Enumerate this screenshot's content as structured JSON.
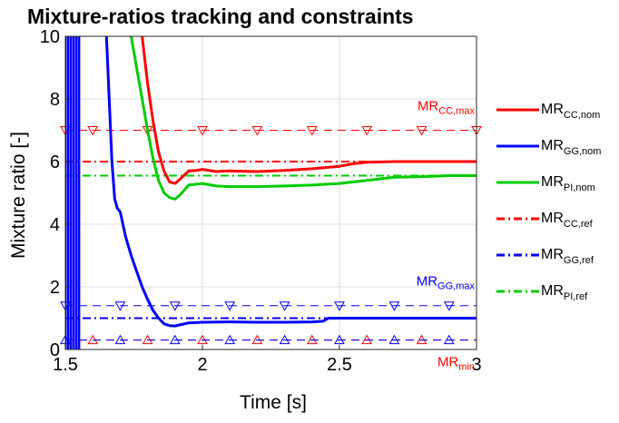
{
  "chart_data": {
    "type": "line",
    "title": "Mixture-ratios tracking and constraints",
    "xlabel": "Time [s]",
    "ylabel": "Mixture ratio [-]",
    "xlim": [
      1.5,
      3
    ],
    "ylim": [
      0,
      10
    ],
    "xticks": [
      "1.5",
      "2",
      "2.5",
      "3"
    ],
    "yticks": [
      "0",
      "2",
      "4",
      "6",
      "8",
      "10"
    ],
    "grid": true,
    "legend_position": "outside-right",
    "series": [
      {
        "name": "MR",
        "sub": "CC,nom",
        "color": "#ff0000",
        "style": "solid",
        "x": [
          1.78,
          1.8,
          1.82,
          1.84,
          1.86,
          1.88,
          1.9,
          1.92,
          1.95,
          1.98,
          2.0,
          2.05,
          2.1,
          2.2,
          2.3,
          2.4,
          2.5,
          2.55,
          2.6,
          2.7,
          2.8,
          2.9,
          3.0
        ],
        "y": [
          10.0,
          8.5,
          7.3,
          6.3,
          5.7,
          5.35,
          5.3,
          5.45,
          5.7,
          5.72,
          5.75,
          5.68,
          5.7,
          5.68,
          5.72,
          5.77,
          5.85,
          5.93,
          5.98,
          6.0,
          6.0,
          6.0,
          6.0
        ]
      },
      {
        "name": "MR",
        "sub": "GG,nom",
        "color": "#0000ff",
        "style": "solid",
        "x": [
          1.65,
          1.66,
          1.67,
          1.68,
          1.69,
          1.7,
          1.72,
          1.74,
          1.76,
          1.78,
          1.8,
          1.82,
          1.84,
          1.86,
          1.88,
          1.9,
          1.95,
          2.0,
          2.1,
          2.2,
          2.3,
          2.4,
          2.44,
          2.46,
          2.5,
          2.6,
          2.8,
          3.0
        ],
        "y": [
          10.0,
          8.0,
          6.0,
          4.8,
          4.5,
          4.4,
          3.6,
          3.0,
          2.5,
          2.0,
          1.6,
          1.25,
          1.0,
          0.82,
          0.76,
          0.75,
          0.85,
          0.87,
          0.88,
          0.87,
          0.87,
          0.88,
          0.9,
          1.0,
          1.0,
          1.0,
          1.0,
          1.0
        ]
      },
      {
        "name": "MR",
        "sub": "PI,nom",
        "color": "#00cc00",
        "style": "solid",
        "x": [
          1.74,
          1.76,
          1.78,
          1.8,
          1.82,
          1.84,
          1.86,
          1.88,
          1.9,
          1.92,
          1.95,
          2.0,
          2.05,
          2.1,
          2.2,
          2.3,
          2.4,
          2.5,
          2.6,
          2.7,
          2.8,
          2.9,
          3.0
        ],
        "y": [
          10.0,
          9.0,
          8.0,
          7.0,
          6.1,
          5.4,
          5.0,
          4.85,
          4.8,
          4.95,
          5.25,
          5.3,
          5.22,
          5.2,
          5.2,
          5.22,
          5.25,
          5.3,
          5.4,
          5.5,
          5.52,
          5.55,
          5.55
        ]
      },
      {
        "name": "MR",
        "sub": "CC,ref",
        "color": "#ff0000",
        "style": "dashdot",
        "x": [
          1.5,
          3.0
        ],
        "y": [
          6.0,
          6.0
        ]
      },
      {
        "name": "MR",
        "sub": "GG,ref",
        "color": "#0000ff",
        "style": "dashdot",
        "x": [
          1.5,
          3.0
        ],
        "y": [
          1.0,
          1.0
        ]
      },
      {
        "name": "MR",
        "sub": "PI,ref",
        "color": "#00cc00",
        "style": "dashdot",
        "x": [
          1.5,
          3.0
        ],
        "y": [
          5.55,
          5.55
        ]
      }
    ],
    "constraints": [
      {
        "name": "MR",
        "sub": "CC,max",
        "color": "#ff0000",
        "value": 7.0,
        "marker": "triangle-down",
        "marker_x": [
          1.5,
          1.6,
          1.8,
          2.0,
          2.2,
          2.4,
          2.6,
          2.8,
          3.0
        ]
      },
      {
        "name": "MR",
        "sub": "GG,max",
        "color": "#0000ff",
        "value": 1.4,
        "marker": "triangle-down",
        "marker_x": [
          1.5,
          1.7,
          1.9,
          2.1,
          2.3,
          2.5,
          2.7,
          2.9
        ]
      },
      {
        "name": "MR",
        "sub": "min",
        "color": "#ff0000",
        "value": 0.3,
        "marker": "triangle-up",
        "marker_x": [
          1.6,
          1.8,
          2.0,
          2.2,
          2.4,
          2.6,
          2.8
        ]
      },
      {
        "name": "",
        "sub": "",
        "color": "#0000ff",
        "value": 0.3,
        "marker": "triangle-up",
        "marker_x": [
          1.5,
          1.7,
          1.9,
          2.1,
          2.3,
          2.5,
          2.7,
          2.9
        ]
      }
    ],
    "startup_transient": {
      "color": "#0000ff",
      "x": [
        1.5,
        1.51,
        1.52,
        1.53,
        1.54,
        1.55
      ],
      "y_range": [
        0,
        10
      ]
    }
  }
}
